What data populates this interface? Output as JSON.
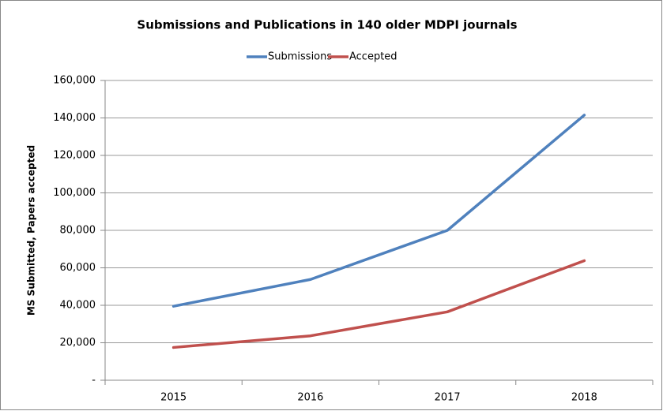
{
  "chart_data": {
    "type": "line",
    "title": "Submissions and Publications in 140 older MDPI journals",
    "y_label": "MS Submitted, Papers accepted",
    "categories": [
      "2015",
      "2016",
      "2017",
      "2018"
    ],
    "series": [
      {
        "name": "Submissions",
        "color": "#4f81bd",
        "values": [
          39500,
          53800,
          80000,
          141500
        ]
      },
      {
        "name": "Accepted",
        "color": "#c0504d",
        "values": [
          17500,
          23700,
          36500,
          63800
        ]
      }
    ],
    "ylim": [
      0,
      160000
    ],
    "yticks": [
      {
        "value": 0,
        "label": "-"
      },
      {
        "value": 20000,
        "label": "20,000"
      },
      {
        "value": 40000,
        "label": "40,000"
      },
      {
        "value": 60000,
        "label": "60,000"
      },
      {
        "value": 80000,
        "label": "80,000"
      },
      {
        "value": 100000,
        "label": "100,000"
      },
      {
        "value": 120000,
        "label": "120,000"
      },
      {
        "value": 140000,
        "label": "140,000"
      },
      {
        "value": 160000,
        "label": "160,000"
      }
    ],
    "grid": true,
    "legend": "top"
  }
}
